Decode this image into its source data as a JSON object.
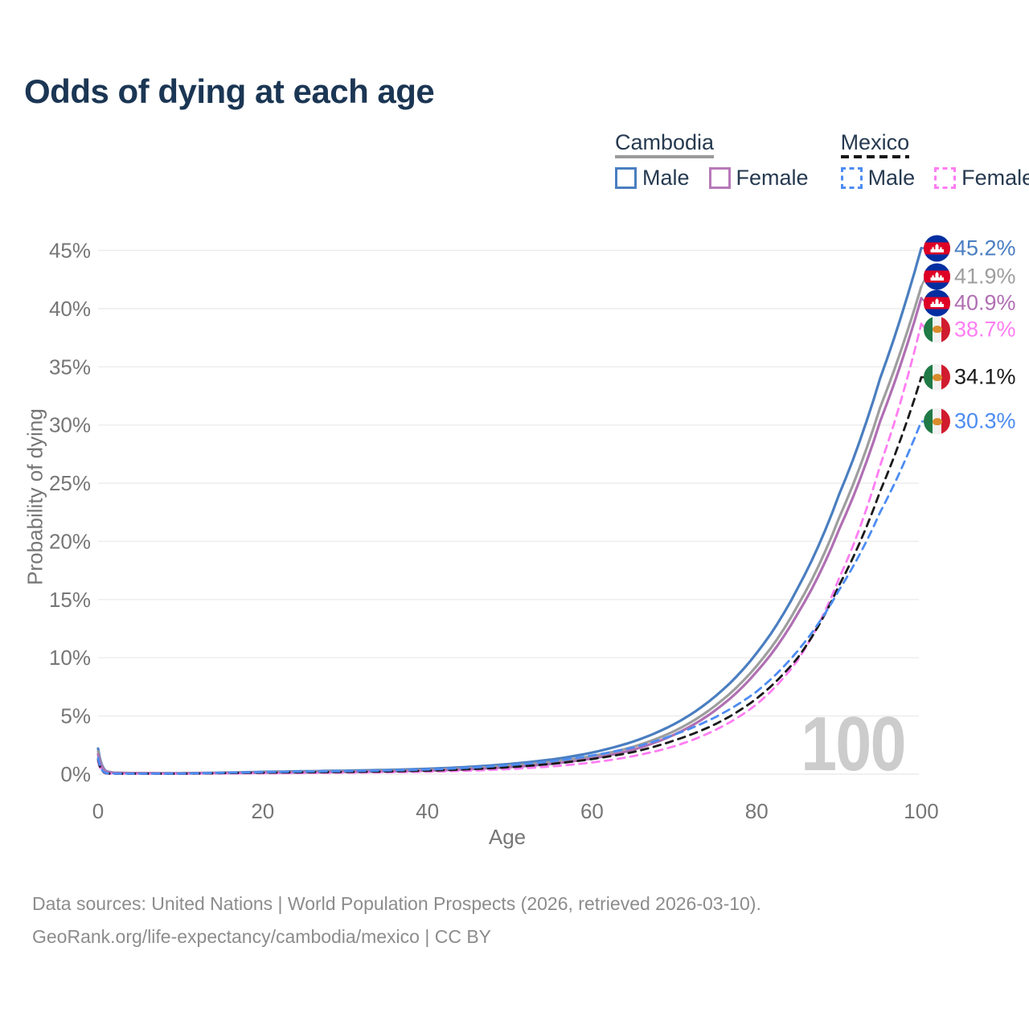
{
  "title": "Odds of dying at each age",
  "legend": {
    "groups": [
      {
        "label": "Cambodia",
        "line_style": "solid",
        "underline_color": "#9b9b9b",
        "items": [
          {
            "label": "Male",
            "color": "#4a7ec0",
            "dashed": false
          },
          {
            "label": "Female",
            "color": "#b779b9",
            "dashed": false
          }
        ]
      },
      {
        "label": "Mexico",
        "line_style": "dashed",
        "underline_color": "#161616",
        "items": [
          {
            "label": "Male",
            "color": "#4d8cf2",
            "dashed": true
          },
          {
            "label": "Female",
            "color": "#ff7df2",
            "dashed": true
          }
        ]
      }
    ]
  },
  "chart_data": {
    "type": "line",
    "title": "Odds of dying at each age",
    "xlabel": "Age",
    "ylabel": "Probability of dying",
    "xlim": [
      0,
      100
    ],
    "ylim": [
      0,
      45
    ],
    "grid": true,
    "legend_position": "top-right",
    "watermark": "100",
    "x_ticks": [
      0,
      20,
      40,
      60,
      80,
      100
    ],
    "y_ticks": [
      {
        "v": 0,
        "label": "0%"
      },
      {
        "v": 5,
        "label": "5%"
      },
      {
        "v": 10,
        "label": "10%"
      },
      {
        "v": 15,
        "label": "15%"
      },
      {
        "v": 20,
        "label": "20%"
      },
      {
        "v": 25,
        "label": "25%"
      },
      {
        "v": 30,
        "label": "30%"
      },
      {
        "v": 35,
        "label": "35%"
      },
      {
        "v": 40,
        "label": "40%"
      },
      {
        "v": 45,
        "label": "45%"
      }
    ],
    "ages": [
      0,
      1,
      2,
      5,
      10,
      15,
      20,
      25,
      30,
      35,
      40,
      45,
      50,
      55,
      60,
      65,
      70,
      75,
      80,
      85,
      90,
      95,
      100
    ],
    "series": [
      {
        "name": "Cambodia Male",
        "country": "cambodia",
        "sex": "male",
        "color": "#4a7ec0",
        "dashed": false,
        "end_label": "45.2%",
        "values": [
          2.2,
          0.25,
          0.12,
          0.09,
          0.08,
          0.13,
          0.2,
          0.25,
          0.3,
          0.36,
          0.46,
          0.62,
          0.88,
          1.25,
          1.85,
          2.8,
          4.3,
          6.7,
          10.4,
          16.0,
          24.0,
          34.0,
          45.2
        ]
      },
      {
        "name": "Cambodia Both sexes",
        "country": "cambodia",
        "sex": "all",
        "color": "#9e9e9e",
        "dashed": false,
        "end_label": "41.9%",
        "values": [
          1.95,
          0.22,
          0.11,
          0.08,
          0.07,
          0.11,
          0.16,
          0.2,
          0.24,
          0.29,
          0.37,
          0.51,
          0.73,
          1.05,
          1.55,
          2.35,
          3.7,
          5.9,
          9.3,
          14.5,
          22.0,
          31.5,
          41.9
        ]
      },
      {
        "name": "Cambodia Female",
        "country": "cambodia",
        "sex": "female",
        "color": "#b06fb3",
        "dashed": false,
        "end_label": "40.9%",
        "values": [
          1.7,
          0.2,
          0.1,
          0.07,
          0.06,
          0.09,
          0.12,
          0.15,
          0.19,
          0.23,
          0.3,
          0.42,
          0.6,
          0.88,
          1.35,
          2.1,
          3.4,
          5.5,
          8.8,
          13.8,
          21.0,
          30.3,
          40.9
        ]
      },
      {
        "name": "Mexico Female",
        "country": "mexico",
        "sex": "female",
        "color": "#ff7df2",
        "dashed": true,
        "end_label": "38.7%",
        "values": [
          1.1,
          0.06,
          0.04,
          0.03,
          0.04,
          0.06,
          0.08,
          0.1,
          0.13,
          0.16,
          0.21,
          0.3,
          0.44,
          0.66,
          1.0,
          1.55,
          2.4,
          3.8,
          6.0,
          9.8,
          16.8,
          26.5,
          38.7
        ]
      },
      {
        "name": "Mexico Both sexes",
        "country": "mexico",
        "sex": "all",
        "color": "#1a1a1a",
        "dashed": true,
        "end_label": "34.1%",
        "values": [
          1.25,
          0.07,
          0.04,
          0.04,
          0.04,
          0.09,
          0.13,
          0.16,
          0.19,
          0.23,
          0.3,
          0.42,
          0.6,
          0.88,
          1.3,
          1.9,
          2.9,
          4.3,
          6.5,
          10.0,
          16.2,
          24.3,
          34.1
        ]
      },
      {
        "name": "Mexico Male",
        "country": "mexico",
        "sex": "male",
        "color": "#4d8cf2",
        "dashed": true,
        "end_label": "30.3%",
        "values": [
          1.4,
          0.08,
          0.05,
          0.04,
          0.05,
          0.12,
          0.18,
          0.22,
          0.26,
          0.31,
          0.4,
          0.55,
          0.78,
          1.1,
          1.6,
          2.3,
          3.4,
          4.9,
          7.1,
          10.6,
          15.8,
          22.5,
          30.3
        ]
      }
    ]
  },
  "footer": {
    "line1": "Data sources: United Nations | World Population Prospects (2026, retrieved 2026-03-10).",
    "line2": "GeoRank.org/life-expectancy/cambodia/mexico | CC BY"
  }
}
